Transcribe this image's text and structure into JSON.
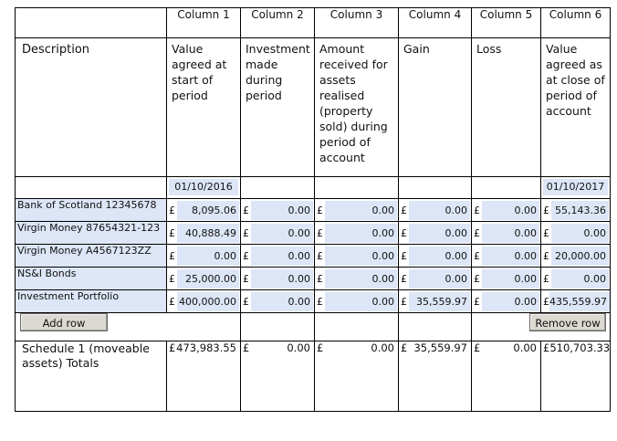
{
  "columns": [
    "Column 1",
    "Column 2",
    "Column 3",
    "Column 4",
    "Column 5",
    "Column 6"
  ],
  "description_label": "Description",
  "column_descriptions": [
    "Value agreed at start of period",
    "Investment made during period",
    "Amount received for assets realised (property sold) during period of account",
    "Gain",
    "Loss",
    "Value agreed as at close of period of account"
  ],
  "dates": {
    "start": "01/10/2016",
    "end": "01/10/2017"
  },
  "currency_symbol": "£",
  "rows": [
    {
      "name": "Bank of Scotland 12345678",
      "values": [
        "8,095.06",
        "0.00",
        "0.00",
        "0.00",
        "0.00",
        "55,143.36"
      ]
    },
    {
      "name": "Virgin Money 87654321-123",
      "values": [
        "40,888.49",
        "0.00",
        "0.00",
        "0.00",
        "0.00",
        "0.00"
      ]
    },
    {
      "name": "Virgin Money A4567123ZZ",
      "values": [
        "0.00",
        "0.00",
        "0.00",
        "0.00",
        "0.00",
        "20,000.00"
      ]
    },
    {
      "name": "NS&I Bonds",
      "values": [
        "25,000.00",
        "0.00",
        "0.00",
        "0.00",
        "0.00",
        "0.00"
      ]
    },
    {
      "name": "Investment Portfolio",
      "values": [
        "400,000.00",
        "0.00",
        "0.00",
        "35,559.97",
        "0.00",
        "435,559.97"
      ]
    }
  ],
  "buttons": {
    "add_row": "Add row",
    "remove_row": "Remove row"
  },
  "totals": {
    "label": "Schedule 1 (moveable assets) Totals",
    "values": [
      "473,983.55",
      "0.00",
      "0.00",
      "35,559.97",
      "0.00",
      "510,703.33"
    ]
  }
}
